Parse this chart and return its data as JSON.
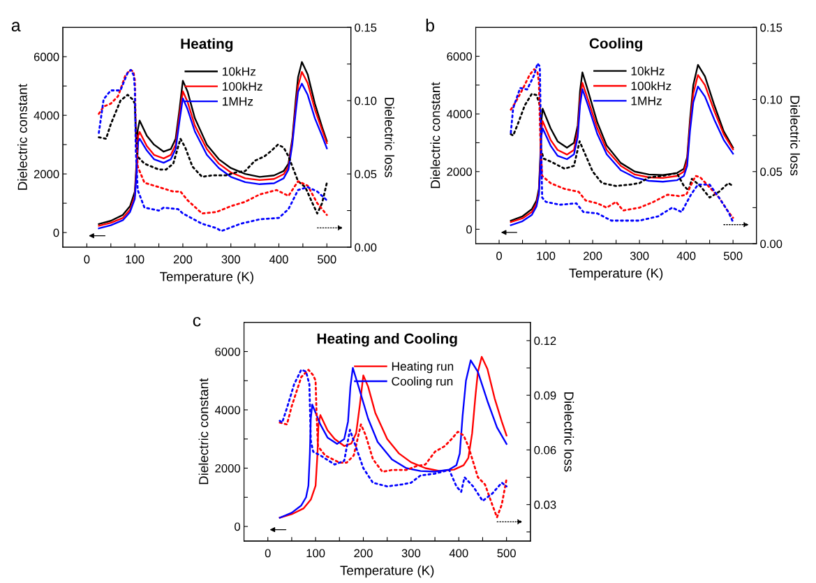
{
  "chart_data": [
    {
      "type": "line",
      "title": "Heating",
      "xlabel": "Temperature (K)",
      "ylabel": "Dielectric constant",
      "y2label": "Dielectric loss",
      "annotations": [
        "a"
      ],
      "legend": "top",
      "grid": false,
      "xlim": [
        -50,
        550
      ],
      "xticks": [
        0,
        {
          "value": 50,
          "label": null
        },
        100,
        {
          "value": 150,
          "label": null
        },
        200,
        {
          "value": 250,
          "label": null
        },
        300,
        {
          "value": 350,
          "label": null
        },
        400,
        {
          "value": 450,
          "label": null
        },
        500
      ],
      "ylim": [
        -500,
        7000
      ],
      "yticks": [
        0,
        {
          "value": 1000,
          "label": null
        },
        2000,
        {
          "value": 3000,
          "label": null
        },
        4000,
        {
          "value": 5000,
          "label": null
        },
        6000
      ],
      "y2lim": [
        0,
        0.15
      ],
      "y2ticks": [
        {
          "value": 0,
          "label": "0.00"
        },
        {
          "value": 0.025,
          "label": null
        },
        {
          "value": 0.05,
          "label": "0.05"
        },
        {
          "value": 0.075,
          "label": null
        },
        {
          "value": 0.1,
          "label": "0.10"
        },
        {
          "value": 0.125,
          "label": null
        },
        {
          "value": 0.15,
          "label": "0.15"
        }
      ],
      "series": [
        {
          "name": "10kHz",
          "color": "#000000",
          "line_style": "solid",
          "x": [
            25,
            50,
            75,
            90,
            100,
            104,
            106,
            110,
            125,
            140,
            160,
            175,
            185,
            193,
            200,
            210,
            225,
            250,
            275,
            300,
            330,
            360,
            390,
            410,
            420,
            428,
            435,
            440,
            448,
            460,
            475,
            490,
            500
          ],
          "values": [
            290,
            400,
            600,
            900,
            1400,
            2500,
            3500,
            3820,
            3300,
            3000,
            2760,
            2850,
            3200,
            4200,
            5180,
            4800,
            3900,
            3000,
            2500,
            2200,
            2000,
            1900,
            1950,
            2100,
            2350,
            3200,
            4500,
            5300,
            5820,
            5400,
            4400,
            3600,
            3120
          ]
        },
        {
          "name": "100kHz",
          "color": "#ff0000",
          "line_style": "solid",
          "x": [
            25,
            50,
            75,
            90,
            100,
            104,
            107,
            110,
            125,
            140,
            160,
            175,
            185,
            193,
            200,
            210,
            225,
            250,
            275,
            300,
            330,
            360,
            390,
            410,
            420,
            428,
            435,
            440,
            448,
            460,
            475,
            490,
            500
          ],
          "values": [
            230,
            330,
            500,
            780,
            1250,
            2300,
            3300,
            3430,
            2950,
            2650,
            2530,
            2650,
            3000,
            4000,
            4820,
            4450,
            3650,
            2850,
            2350,
            2050,
            1850,
            1790,
            1830,
            1990,
            2250,
            3100,
            4300,
            5000,
            5480,
            5100,
            4200,
            3500,
            3050
          ]
        },
        {
          "name": "1MHz",
          "color": "#0000ff",
          "line_style": "solid",
          "x": [
            25,
            50,
            75,
            90,
            100,
            104,
            107,
            110,
            125,
            140,
            160,
            175,
            185,
            193,
            200,
            210,
            225,
            250,
            275,
            300,
            330,
            360,
            390,
            410,
            420,
            428,
            435,
            440,
            448,
            460,
            475,
            490,
            500
          ],
          "values": [
            140,
            250,
            420,
            700,
            1150,
            2100,
            3100,
            3200,
            2800,
            2500,
            2380,
            2500,
            2850,
            3800,
            4580,
            4200,
            3450,
            2650,
            2200,
            1900,
            1720,
            1650,
            1680,
            1850,
            2150,
            3000,
            4100,
            4800,
            5080,
            4700,
            3900,
            3300,
            2870
          ]
        },
        {
          "color": "#000000",
          "line_style": "dotted",
          "axis": "y2",
          "x": [
            25,
            40,
            50,
            70,
            85,
            95,
            100,
            102,
            105,
            120,
            150,
            165,
            180,
            195,
            205,
            220,
            240,
            260,
            290,
            310,
            330,
            350,
            370,
            385,
            398,
            410,
            420,
            440,
            455,
            470,
            480,
            490,
            500
          ],
          "values": [
            0.075,
            0.074,
            0.084,
            0.1,
            0.104,
            0.101,
            0.098,
            0.08,
            0.062,
            0.057,
            0.053,
            0.053,
            0.057,
            0.074,
            0.068,
            0.055,
            0.048,
            0.049,
            0.049,
            0.051,
            0.052,
            0.059,
            0.062,
            0.066,
            0.07,
            0.068,
            0.062,
            0.045,
            0.041,
            0.03,
            0.023,
            0.03,
            0.044
          ]
        },
        {
          "color": "#ff0000",
          "line_style": "dotted",
          "axis": "y2",
          "x": [
            25,
            35,
            50,
            65,
            80,
            90,
            97,
            100,
            102,
            106,
            120,
            150,
            180,
            195,
            210,
            240,
            270,
            300,
            330,
            360,
            395,
            420,
            440,
            460,
            480,
            500
          ],
          "values": [
            0.091,
            0.096,
            0.098,
            0.103,
            0.117,
            0.121,
            0.12,
            0.114,
            0.08,
            0.055,
            0.044,
            0.041,
            0.038,
            0.038,
            0.032,
            0.023,
            0.024,
            0.028,
            0.031,
            0.036,
            0.039,
            0.035,
            0.045,
            0.042,
            0.03,
            0.022
          ]
        },
        {
          "color": "#0000ff",
          "line_style": "dotted",
          "axis": "y2",
          "x": [
            25,
            35,
            50,
            70,
            85,
            92,
            98,
            100,
            102,
            106,
            120,
            150,
            160,
            190,
            200,
            240,
            270,
            280,
            320,
            360,
            400,
            420,
            440,
            460,
            480,
            500
          ],
          "values": [
            0.078,
            0.101,
            0.107,
            0.107,
            0.119,
            0.121,
            0.117,
            0.108,
            0.066,
            0.039,
            0.027,
            0.025,
            0.027,
            0.026,
            0.023,
            0.016,
            0.013,
            0.011,
            0.016,
            0.019,
            0.02,
            0.026,
            0.039,
            0.041,
            0.038,
            0.032
          ]
        }
      ]
    },
    {
      "type": "line",
      "title": "Cooling",
      "xlabel": "Temperature (K)",
      "ylabel": "Dielectric constant",
      "y2label": "Dielectric loss",
      "annotations": [
        "b"
      ],
      "legend": "top",
      "grid": false,
      "xlim": [
        -50,
        550
      ],
      "xticks": [
        0,
        {
          "value": 50,
          "label": null
        },
        100,
        {
          "value": 150,
          "label": null
        },
        200,
        {
          "value": 250,
          "label": null
        },
        300,
        {
          "value": 350,
          "label": null
        },
        400,
        {
          "value": 450,
          "label": null
        },
        500
      ],
      "ylim": [
        -500,
        7000
      ],
      "yticks": [
        0,
        {
          "value": 1000,
          "label": null
        },
        2000,
        {
          "value": 3000,
          "label": null
        },
        4000,
        {
          "value": 5000,
          "label": null
        },
        6000
      ],
      "y2lim": [
        0,
        0.15
      ],
      "y2ticks": [
        {
          "value": 0,
          "label": "0.00"
        },
        {
          "value": 0.025,
          "label": null
        },
        {
          "value": 0.05,
          "label": "0.05"
        },
        {
          "value": 0.075,
          "label": null
        },
        {
          "value": 0.1,
          "label": "0.10"
        },
        {
          "value": 0.125,
          "label": null
        },
        {
          "value": 0.15,
          "label": "0.15"
        }
      ],
      "series": [
        {
          "name": "10kHz",
          "color": "#000000",
          "line_style": "solid",
          "x": [
            25,
            50,
            70,
            80,
            85,
            88,
            90,
            93,
            110,
            125,
            145,
            160,
            168,
            173,
            178,
            190,
            210,
            230,
            260,
            290,
            320,
            350,
            380,
            395,
            402,
            408,
            415,
            425,
            440,
            460,
            480,
            500
          ],
          "values": [
            300,
            450,
            700,
            1000,
            1400,
            2500,
            3700,
            4180,
            3500,
            3050,
            2830,
            3000,
            3600,
            4800,
            5440,
            4800,
            3700,
            2900,
            2300,
            2000,
            1900,
            1880,
            1950,
            2100,
            2500,
            3800,
            5000,
            5700,
            5300,
            4300,
            3400,
            2830
          ]
        },
        {
          "name": "100kHz",
          "color": "#ff0000",
          "line_style": "solid",
          "x": [
            25,
            50,
            70,
            80,
            85,
            88,
            90,
            93,
            110,
            125,
            145,
            160,
            168,
            173,
            178,
            190,
            210,
            230,
            260,
            290,
            320,
            350,
            380,
            395,
            402,
            408,
            415,
            425,
            440,
            460,
            480,
            500
          ],
          "values": [
            250,
            380,
            600,
            900,
            1300,
            2300,
            3400,
            3750,
            3100,
            2750,
            2590,
            2750,
            3400,
            4500,
            5080,
            4500,
            3500,
            2750,
            2200,
            1900,
            1800,
            1780,
            1850,
            2000,
            2400,
            3600,
            4700,
            5350,
            5000,
            4100,
            3300,
            2770
          ]
        },
        {
          "name": "1MHz",
          "color": "#0000ff",
          "line_style": "solid",
          "x": [
            25,
            50,
            70,
            80,
            85,
            88,
            90,
            93,
            110,
            125,
            145,
            160,
            168,
            173,
            178,
            190,
            210,
            230,
            260,
            290,
            320,
            350,
            380,
            395,
            402,
            408,
            415,
            425,
            440,
            460,
            480,
            500
          ],
          "values": [
            140,
            280,
            500,
            800,
            1200,
            2100,
            3200,
            3500,
            2900,
            2550,
            2430,
            2600,
            3200,
            4300,
            4860,
            4300,
            3300,
            2600,
            2050,
            1800,
            1680,
            1650,
            1700,
            1850,
            2200,
            3400,
            4400,
            4950,
            4600,
            3800,
            3100,
            2620
          ]
        },
        {
          "color": "#000000",
          "line_style": "dotted",
          "axis": "y2",
          "x": [
            25,
            30,
            40,
            55,
            70,
            80,
            87,
            90,
            95,
            110,
            140,
            160,
            172,
            180,
            200,
            220,
            250,
            280,
            300,
            320,
            350,
            380,
            395,
            405,
            412,
            430,
            450,
            470,
            490,
            500
          ],
          "values": [
            0.076,
            0.075,
            0.083,
            0.096,
            0.104,
            0.103,
            0.096,
            0.065,
            0.059,
            0.057,
            0.052,
            0.054,
            0.071,
            0.065,
            0.05,
            0.042,
            0.04,
            0.041,
            0.042,
            0.046,
            0.047,
            0.049,
            0.04,
            0.037,
            0.045,
            0.04,
            0.032,
            0.036,
            0.042,
            0.04
          ]
        },
        {
          "color": "#ff0000",
          "line_style": "dotted",
          "axis": "y2",
          "x": [
            25,
            35,
            50,
            65,
            75,
            82,
            85,
            88,
            92,
            110,
            140,
            170,
            185,
            210,
            230,
            250,
            265,
            300,
            330,
            360,
            385,
            400,
            420,
            430,
            450,
            470,
            490,
            500
          ],
          "values": [
            0.093,
            0.098,
            0.107,
            0.117,
            0.121,
            0.119,
            0.112,
            0.074,
            0.047,
            0.042,
            0.038,
            0.036,
            0.03,
            0.028,
            0.025,
            0.029,
            0.023,
            0.025,
            0.029,
            0.034,
            0.033,
            0.034,
            0.047,
            0.046,
            0.039,
            0.032,
            0.022,
            0.018
          ]
        },
        {
          "color": "#0000ff",
          "line_style": "dotted",
          "axis": "y2",
          "x": [
            25,
            30,
            45,
            60,
            75,
            82,
            87,
            89,
            92,
            100,
            130,
            165,
            180,
            210,
            240,
            270,
            300,
            340,
            370,
            390,
            410,
            425,
            450,
            470,
            490,
            500
          ],
          "values": [
            0.077,
            0.094,
            0.108,
            0.107,
            0.117,
            0.125,
            0.123,
            0.083,
            0.032,
            0.029,
            0.027,
            0.028,
            0.022,
            0.021,
            0.016,
            0.016,
            0.016,
            0.019,
            0.025,
            0.022,
            0.034,
            0.041,
            0.041,
            0.032,
            0.022,
            0.015
          ]
        }
      ]
    },
    {
      "type": "line",
      "title": "Heating and Cooling",
      "xlabel": "Temperature (K)",
      "ylabel": "Dielectric constant",
      "y2label": "Dielectric loss",
      "annotations": [
        "c"
      ],
      "legend": "top",
      "grid": false,
      "xlim": [
        -50,
        550
      ],
      "xticks": [
        0,
        {
          "value": 50,
          "label": null
        },
        100,
        {
          "value": 150,
          "label": null
        },
        200,
        {
          "value": 250,
          "label": null
        },
        300,
        {
          "value": 350,
          "label": null
        },
        400,
        {
          "value": 450,
          "label": null
        },
        500
      ],
      "ylim": [
        -500,
        7000
      ],
      "yticks": [
        0,
        {
          "value": 1000,
          "label": null
        },
        2000,
        {
          "value": 3000,
          "label": null
        },
        4000,
        {
          "value": 5000,
          "label": null
        },
        6000
      ],
      "y2lim": [
        0.01,
        0.13
      ],
      "y2ticks": [
        {
          "value": 0.015,
          "label": null
        },
        0.03,
        {
          "value": 0.045,
          "label": null
        },
        0.06,
        {
          "value": 0.075,
          "label": null
        },
        0.09,
        {
          "value": 0.105,
          "label": null
        },
        0.12
      ],
      "series": [
        {
          "name": "Heating run",
          "color": "#ff0000",
          "line_style": "solid",
          "x": [
            25,
            50,
            75,
            90,
            100,
            104,
            106,
            110,
            125,
            140,
            160,
            175,
            185,
            193,
            200,
            210,
            225,
            250,
            275,
            300,
            330,
            360,
            390,
            410,
            420,
            428,
            435,
            440,
            448,
            460,
            475,
            490,
            500
          ],
          "values": [
            300,
            420,
            620,
            920,
            1400,
            2500,
            3500,
            3820,
            3300,
            3000,
            2760,
            2850,
            3200,
            4200,
            5180,
            4800,
            3900,
            3000,
            2500,
            2200,
            2000,
            1900,
            1950,
            2100,
            2350,
            3200,
            4500,
            5300,
            5820,
            5400,
            4400,
            3600,
            3120
          ]
        },
        {
          "name": "Cooling run",
          "color": "#0000ff",
          "line_style": "solid",
          "x": [
            25,
            50,
            70,
            80,
            85,
            88,
            90,
            93,
            110,
            125,
            145,
            160,
            168,
            173,
            178,
            190,
            210,
            230,
            260,
            290,
            320,
            350,
            380,
            395,
            402,
            408,
            415,
            425,
            440,
            460,
            480,
            500
          ],
          "values": [
            300,
            470,
            720,
            1000,
            1400,
            2500,
            3700,
            4180,
            3500,
            3050,
            2830,
            3000,
            3600,
            4800,
            5440,
            4800,
            3700,
            2900,
            2300,
            2000,
            1900,
            1880,
            1950,
            2100,
            2500,
            3800,
            5000,
            5700,
            5300,
            4300,
            3400,
            2830
          ]
        },
        {
          "color": "#ff0000",
          "line_style": "dotted",
          "axis": "y2",
          "x": [
            25,
            40,
            50,
            70,
            85,
            95,
            100,
            102,
            105,
            120,
            150,
            165,
            180,
            195,
            205,
            220,
            240,
            260,
            290,
            310,
            330,
            350,
            370,
            385,
            398,
            410,
            420,
            440,
            455,
            470,
            480,
            490,
            500
          ],
          "values": [
            0.075,
            0.074,
            0.084,
            0.1,
            0.104,
            0.101,
            0.098,
            0.08,
            0.062,
            0.057,
            0.053,
            0.053,
            0.057,
            0.074,
            0.068,
            0.055,
            0.048,
            0.049,
            0.049,
            0.051,
            0.052,
            0.059,
            0.062,
            0.066,
            0.07,
            0.068,
            0.062,
            0.045,
            0.041,
            0.03,
            0.023,
            0.03,
            0.044
          ]
        },
        {
          "color": "#0000ff",
          "line_style": "dotted",
          "axis": "y2",
          "x": [
            25,
            30,
            40,
            55,
            70,
            80,
            87,
            90,
            95,
            110,
            140,
            160,
            172,
            180,
            200,
            220,
            250,
            280,
            300,
            320,
            350,
            380,
            395,
            405,
            412,
            430,
            450,
            470,
            490,
            500
          ],
          "values": [
            0.076,
            0.075,
            0.083,
            0.096,
            0.104,
            0.103,
            0.096,
            0.065,
            0.059,
            0.057,
            0.052,
            0.054,
            0.071,
            0.065,
            0.05,
            0.042,
            0.04,
            0.041,
            0.042,
            0.046,
            0.047,
            0.049,
            0.04,
            0.037,
            0.045,
            0.04,
            0.032,
            0.036,
            0.042,
            0.04
          ]
        }
      ]
    }
  ]
}
